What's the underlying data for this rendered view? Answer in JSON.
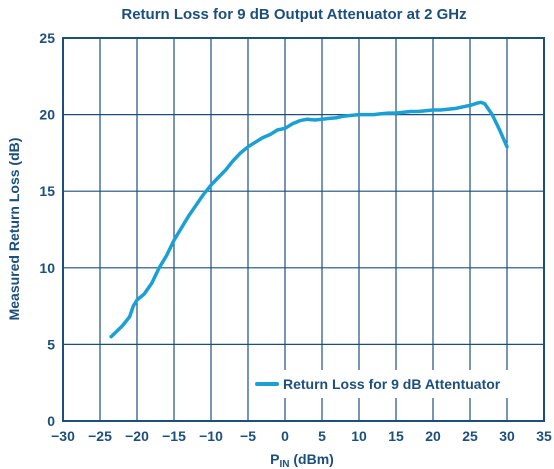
{
  "chart_data": {
    "type": "line",
    "title": "Return Loss for 9 dB Output Attenuator at 2 GHz",
    "xlabel": {
      "main": "P",
      "sub": "IN",
      "unit": " (dBm)"
    },
    "ylabel": "Measured Return Loss (dB)",
    "xlim": [
      -30,
      35
    ],
    "ylim": [
      0,
      25
    ],
    "xticks": [
      -30,
      -25,
      -20,
      -15,
      -10,
      -5,
      0,
      5,
      10,
      15,
      20,
      25,
      30,
      35
    ],
    "yticks": [
      0,
      5,
      10,
      15,
      20,
      25
    ],
    "grid": true,
    "legend_position": "bottom-right",
    "series": [
      {
        "name": "Return Loss for 9 dB Attentuator",
        "color": "#1aa0d2",
        "x": [
          -23.5,
          -22,
          -21,
          -20.5,
          -20,
          -19,
          -18,
          -17,
          -16,
          -15,
          -14,
          -13,
          -12,
          -11,
          -10,
          -9,
          -8,
          -7,
          -6,
          -5,
          -4,
          -3,
          -2,
          -1,
          0,
          1,
          2,
          3,
          4,
          5,
          6,
          7,
          8,
          9,
          10,
          11,
          12,
          13,
          14,
          15,
          16,
          17,
          18,
          19,
          20,
          21,
          22,
          23,
          24,
          25,
          26,
          26.5,
          27,
          28,
          29,
          30
        ],
        "y": [
          5.5,
          6.2,
          6.8,
          7.5,
          7.9,
          8.3,
          9.0,
          10.0,
          10.8,
          11.8,
          12.6,
          13.4,
          14.1,
          14.8,
          15.4,
          15.9,
          16.4,
          17.0,
          17.5,
          17.9,
          18.2,
          18.5,
          18.7,
          19.0,
          19.1,
          19.4,
          19.6,
          19.7,
          19.65,
          19.7,
          19.75,
          19.8,
          19.9,
          19.95,
          20.0,
          20.0,
          20.0,
          20.05,
          20.1,
          20.1,
          20.15,
          20.2,
          20.2,
          20.25,
          20.3,
          20.3,
          20.35,
          20.4,
          20.5,
          20.6,
          20.75,
          20.8,
          20.7,
          20.0,
          19.0,
          17.9
        ]
      }
    ]
  }
}
